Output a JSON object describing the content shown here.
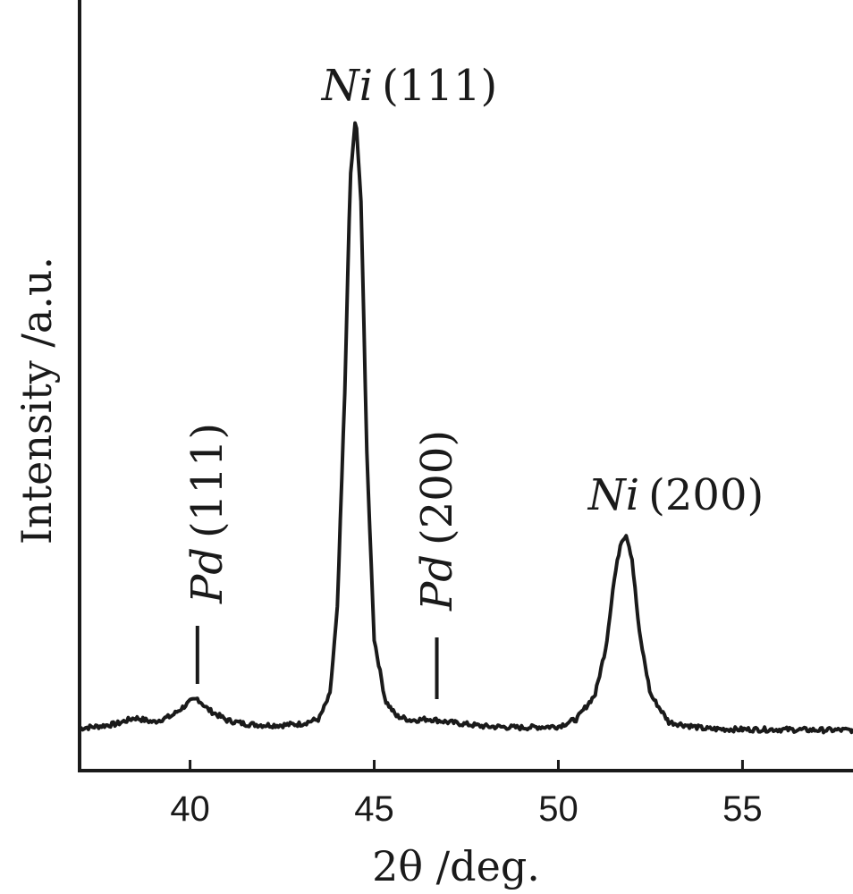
{
  "chart_data": {
    "type": "line",
    "title": "",
    "xlabel": "2θ /deg.",
    "ylabel": "Intensity /a.u.",
    "xlim": [
      37,
      58
    ],
    "ylim": [
      0,
      1
    ],
    "x_ticks": [
      40,
      45,
      50,
      55
    ],
    "x_tick_labels": [
      "40",
      "45",
      "50",
      "55"
    ],
    "y_ticks": [],
    "grid": false,
    "legend": "none",
    "series": [
      {
        "x": [
          37.0,
          37.5,
          38.0,
          38.5,
          39.0,
          39.5,
          40.0,
          40.2,
          40.5,
          41.0,
          41.5,
          42.0,
          42.5,
          43.0,
          43.5,
          43.8,
          44.0,
          44.2,
          44.35,
          44.5,
          44.65,
          44.8,
          45.0,
          45.3,
          45.6,
          46.0,
          46.5,
          47.0,
          48.0,
          49.0,
          50.0,
          50.5,
          51.0,
          51.3,
          51.5,
          51.7,
          51.85,
          52.0,
          52.2,
          52.5,
          53.0,
          54.0,
          55.0,
          56.0,
          57.0,
          58.0
        ],
        "y": [
          0.005,
          0.008,
          0.012,
          0.022,
          0.015,
          0.025,
          0.048,
          0.053,
          0.035,
          0.018,
          0.012,
          0.01,
          0.01,
          0.012,
          0.02,
          0.06,
          0.2,
          0.55,
          0.9,
          1.0,
          0.85,
          0.45,
          0.15,
          0.05,
          0.025,
          0.018,
          0.02,
          0.015,
          0.008,
          0.006,
          0.008,
          0.02,
          0.06,
          0.14,
          0.24,
          0.31,
          0.32,
          0.28,
          0.16,
          0.06,
          0.015,
          0.004,
          0.003,
          0.003,
          0.002,
          0.002
        ]
      }
    ],
    "annotations": [
      {
        "element": "Ni",
        "plane": "(111)",
        "x": 44.5
      },
      {
        "element": "Pd",
        "plane": "(111)",
        "x": 40.2
      },
      {
        "element": "Pd",
        "plane": "(200)",
        "x": 46.7
      },
      {
        "element": "Ni",
        "plane": "(200)",
        "x": 51.9
      }
    ],
    "colors": {
      "line": "#1a1a1a",
      "axis": "#1a1a1a"
    }
  }
}
